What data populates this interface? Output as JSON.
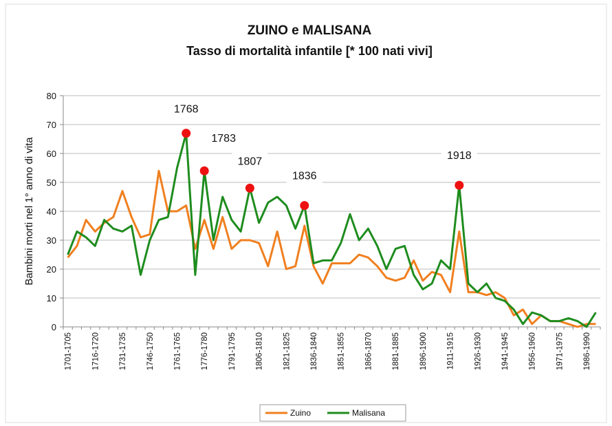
{
  "chart_data": {
    "type": "line",
    "title": "ZUINO e MALISANA",
    "subtitle": "Tasso di mortalità infantile [* 100 nati vivi]",
    "y_label": "Bambini morti nel 1° anno di vita",
    "categories": [
      "1701-1705",
      null,
      null,
      "1716-1720",
      null,
      null,
      "1731-1735",
      null,
      null,
      "1746-1750",
      null,
      null,
      "1761-1765",
      null,
      null,
      "1776-1780",
      null,
      null,
      "1791-1795",
      null,
      null,
      "1806-1810",
      null,
      null,
      "1821-1825",
      null,
      null,
      "1836-1840",
      null,
      null,
      "1851-1855",
      null,
      null,
      "1866-1870",
      null,
      null,
      "1881-1885",
      null,
      null,
      "1896-1900",
      null,
      null,
      "1911-1915",
      null,
      null,
      "1926-1930",
      null,
      null,
      "1941-1945",
      null,
      null,
      "1956-1960",
      null,
      null,
      "1971-1975",
      null,
      null,
      "1986-1990",
      null
    ],
    "series": [
      {
        "name": "Zuino",
        "color": "#f07f1f",
        "values": [
          24,
          28,
          37,
          33,
          36,
          38,
          47,
          38,
          31,
          32,
          54,
          40,
          40,
          42,
          27,
          37,
          27,
          38,
          27,
          30,
          30,
          29,
          21,
          33,
          20,
          21,
          35,
          21,
          15,
          22,
          22,
          22,
          25,
          24,
          21,
          17,
          16,
          17,
          23,
          16,
          19,
          18,
          12,
          33,
          12,
          12,
          11,
          12,
          10,
          4,
          6,
          1,
          4,
          2,
          2,
          1,
          0,
          1,
          1
        ]
      },
      {
        "name": "Malisana",
        "color": "#1e8c1e",
        "values": [
          25,
          33,
          31,
          28,
          37,
          34,
          33,
          35,
          18,
          30,
          37,
          38,
          55,
          67,
          18,
          54,
          30,
          45,
          37,
          33,
          48,
          36,
          43,
          45,
          42,
          34,
          42,
          22,
          23,
          23,
          29,
          39,
          30,
          34,
          28,
          20,
          27,
          28,
          18,
          13,
          15,
          23,
          20,
          49,
          15,
          12,
          15,
          10,
          9,
          6,
          1,
          5,
          4,
          2,
          2,
          3,
          2,
          0,
          5
        ]
      }
    ],
    "annotations": [
      "1768",
      "1783",
      "1807",
      "1836",
      "1918"
    ],
    "annotation_color": "#ee1111",
    "ylim": [
      0,
      80
    ],
    "yticks": [
      0,
      10,
      20,
      30,
      40,
      50,
      60,
      70,
      80
    ],
    "grid": true,
    "legend": "bottom"
  }
}
